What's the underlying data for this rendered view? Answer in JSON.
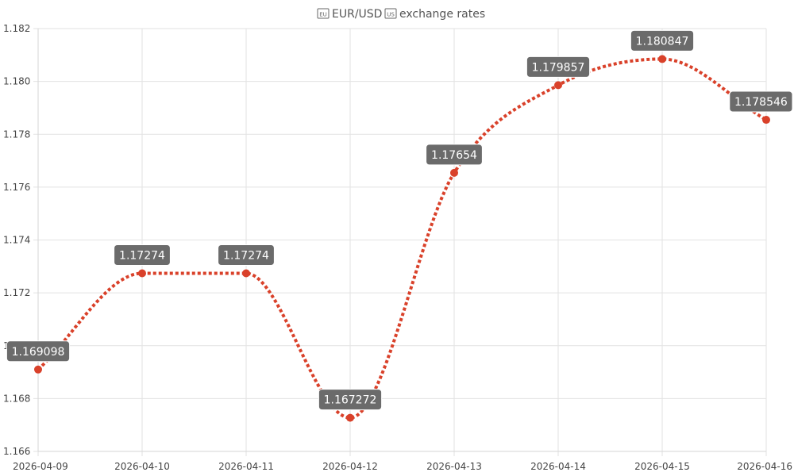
{
  "chart_data": {
    "type": "line",
    "title": "EUR/USD exchange rates",
    "title_icons": [
      "eu-flag-icon",
      "us-flag-icon"
    ],
    "title_parts": {
      "before": "EUR/USD",
      "after": "exchange rates"
    },
    "categories": [
      "2026-04-09",
      "2026-04-10",
      "2026-04-11",
      "2026-04-12",
      "2026-04-13",
      "2026-04-14",
      "2026-04-15",
      "2026-04-16"
    ],
    "series": [
      {
        "values": [
          1.169098,
          1.17274,
          1.17274,
          1.167272,
          1.17654,
          1.179857,
          1.180847,
          1.178546
        ],
        "data_labels": [
          "1.169098",
          "1.17274",
          "1.17274",
          "1.167272",
          "1.17654",
          "1.179857",
          "1.180847",
          "1.178546"
        ],
        "color": "#d9412a",
        "line_style": "dotted",
        "smooth": true
      }
    ],
    "y_ticks": [
      "1.166",
      "1.168",
      "1.170",
      "1.172",
      "1.174",
      "1.176",
      "1.178",
      "1.180",
      "1.182"
    ],
    "ylim": [
      1.166,
      1.182
    ],
    "grid": true,
    "legend": "none",
    "data_label_bg": "#6b6b6b",
    "grid_color": "#e2e2e2"
  }
}
